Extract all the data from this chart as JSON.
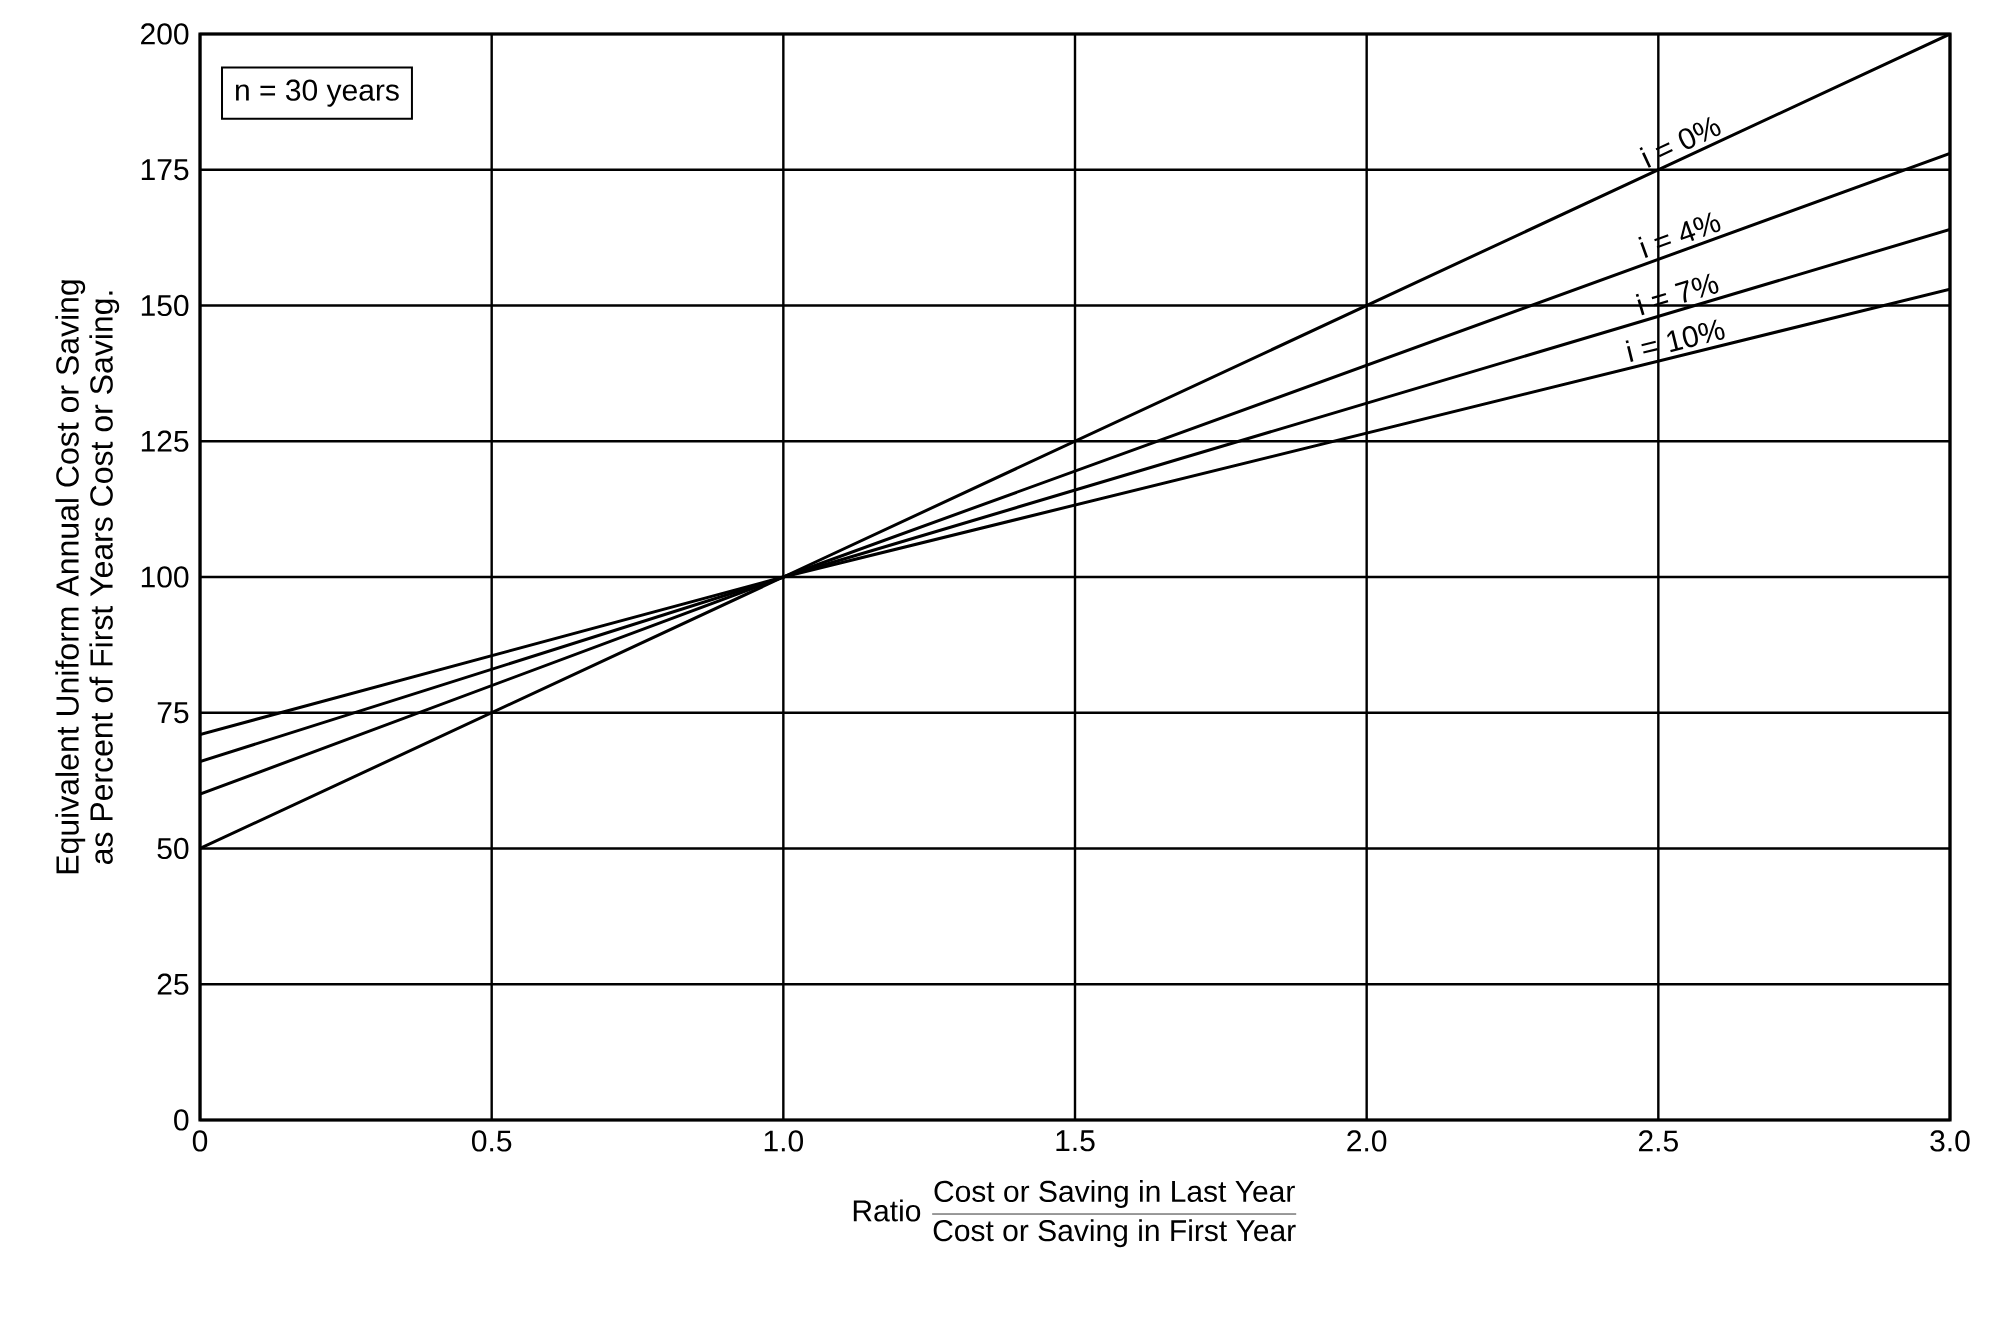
{
  "chart_data": {
    "type": "line",
    "xlabel": "Ratio",
    "ylabel": "Equivalent Uniform Annual Cost or Saving\nas Percent of First Years Cost or Saving.",
    "annotations": [
      "n = 30 years",
      "Cost or Saving in Last Year",
      "Cost or Saving in First Year"
    ],
    "x": [
      0,
      1,
      3
    ],
    "series": [
      {
        "name": "i = 0%",
        "color": "#000000",
        "values": [
          50,
          100,
          200
        ]
      },
      {
        "name": "i = 4%",
        "color": "#000000",
        "values": [
          60,
          100,
          178
        ]
      },
      {
        "name": "i = 7%",
        "color": "#000000",
        "values": [
          66,
          100,
          164
        ]
      },
      {
        "name": "i = 10%",
        "color": "#000000",
        "values": [
          71,
          100,
          153
        ]
      }
    ],
    "xlim": [
      0,
      3
    ],
    "ylim": [
      0,
      200
    ],
    "xticks": [
      0,
      {
        "value": 0.5,
        "label": "0.5"
      },
      {
        "value": 1,
        "label": "1.0"
      },
      {
        "value": 1.5,
        "label": "1.5"
      },
      {
        "value": 2,
        "label": "2.0"
      },
      {
        "value": 2.5,
        "label": "2.5"
      },
      {
        "value": 3,
        "label": "3.0"
      }
    ],
    "yticks": [
      0,
      25,
      50,
      75,
      100,
      125,
      150,
      175,
      200
    ],
    "grid": true,
    "marker": "none",
    "line_style": "solid"
  }
}
